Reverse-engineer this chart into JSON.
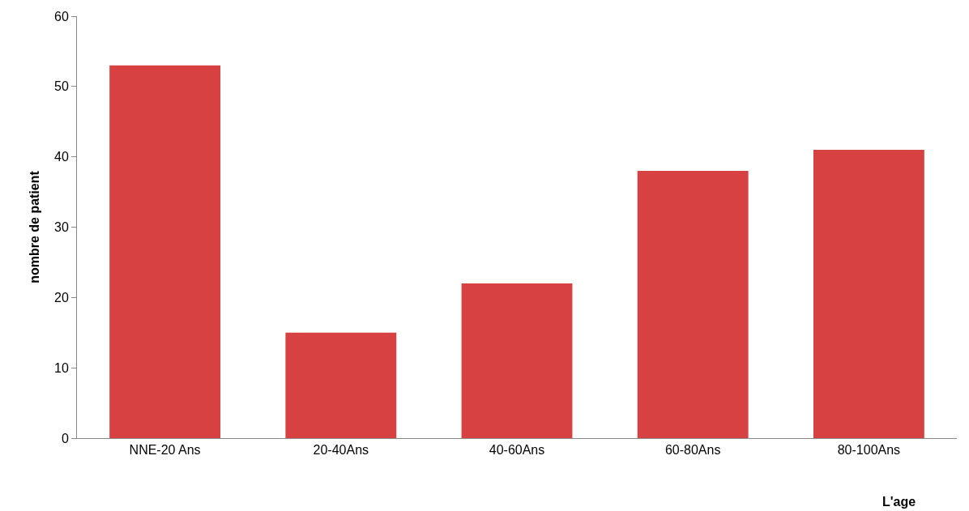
{
  "chart_data": {
    "type": "bar",
    "categories": [
      "NNE-20 Ans",
      "20-40Ans",
      "40-60Ans",
      "60-80Ans",
      "80-100Ans"
    ],
    "values": [
      53,
      15,
      22,
      38,
      41
    ],
    "color": "#d84141",
    "xlabel": "L'age",
    "ylabel": "nombre de patient",
    "ylim": [
      0,
      60
    ],
    "yticks": [
      0,
      10,
      20,
      30,
      40,
      50,
      60
    ]
  }
}
